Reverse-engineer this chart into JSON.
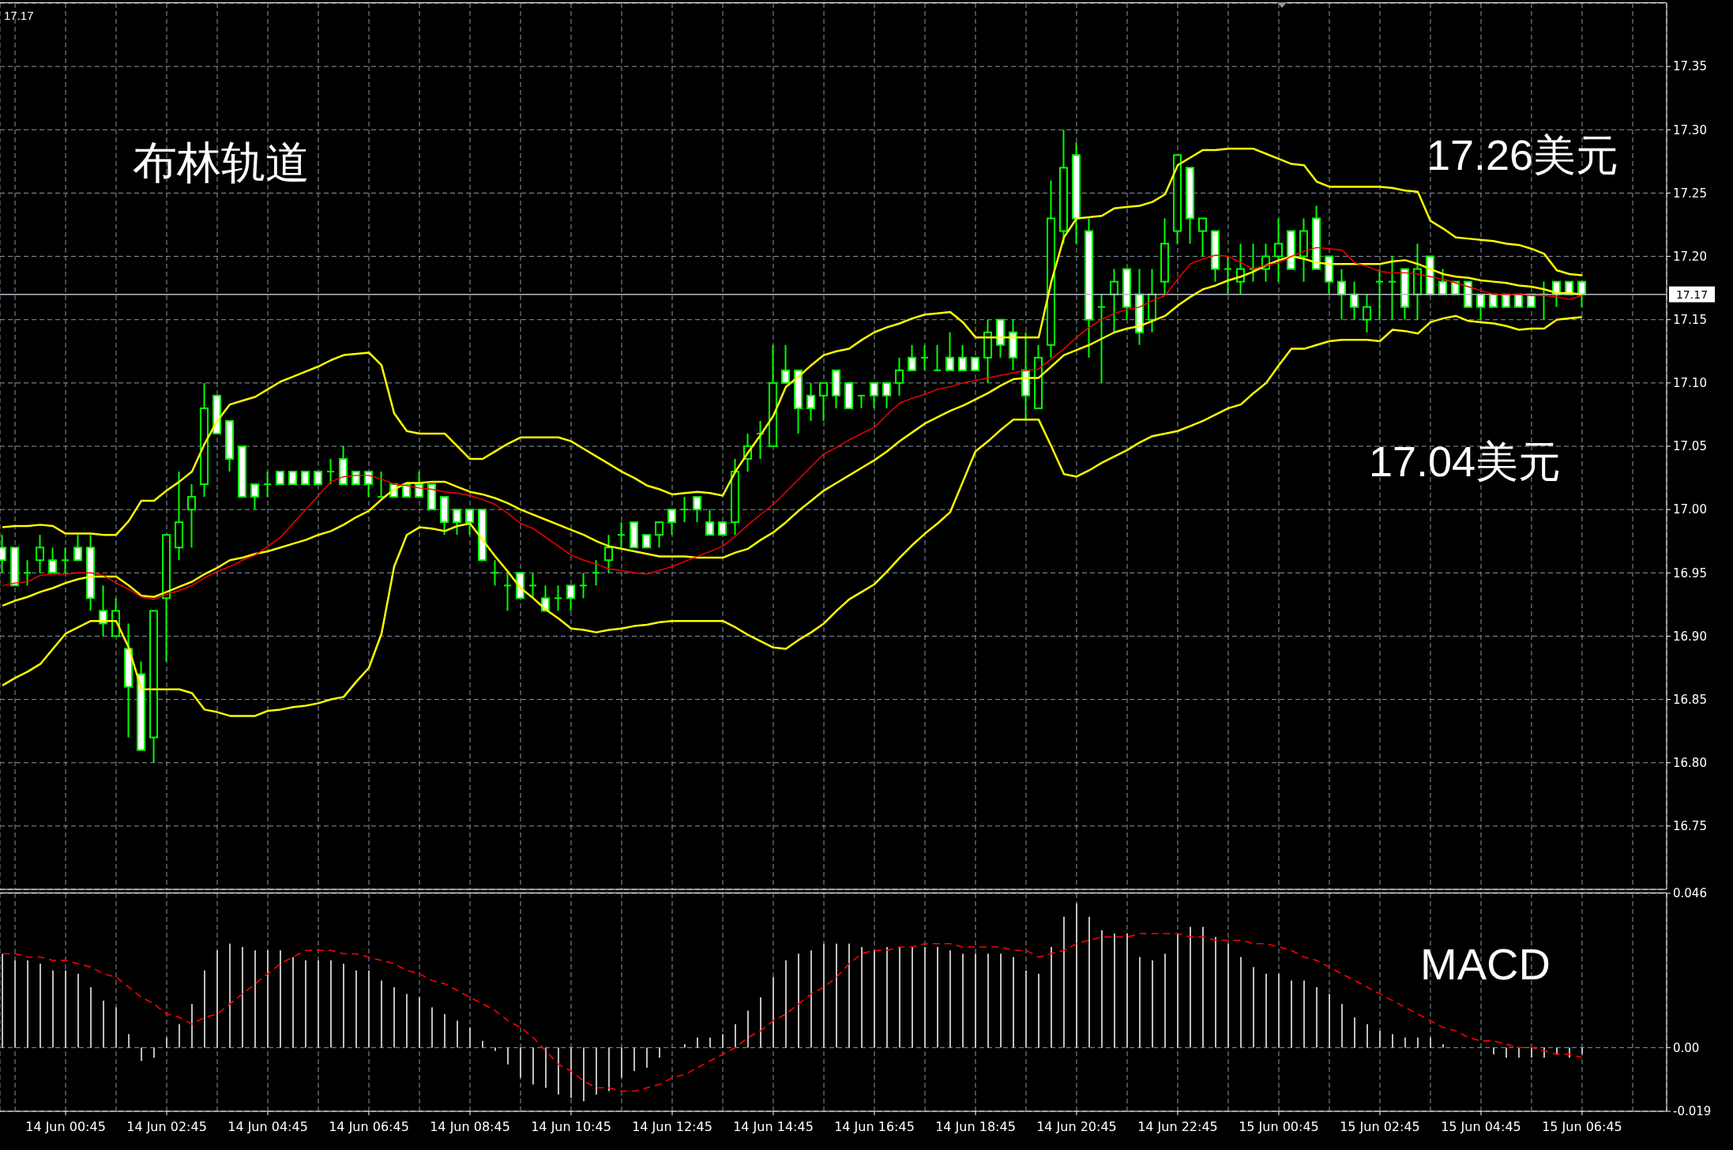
{
  "chart_data": [
    {
      "type": "candlestick",
      "categories": [
        null,
        null,
        null,
        null,
        null,
        null,
        null,
        null,
        null,
        null,
        null,
        null,
        null,
        null,
        null,
        null,
        null,
        null,
        null,
        null,
        null,
        null,
        null,
        null,
        null,
        null,
        null,
        null,
        null,
        null,
        null,
        null,
        null,
        null,
        null,
        null,
        null,
        null,
        null,
        null,
        null,
        null,
        null,
        null,
        null,
        null,
        null,
        null,
        null,
        null,
        null,
        null,
        null,
        null,
        null,
        null,
        null,
        null,
        null,
        null,
        null,
        null,
        null,
        null,
        null,
        null,
        null,
        null,
        null,
        null,
        null,
        null,
        null,
        null,
        null,
        null,
        null,
        null,
        null,
        null,
        null,
        null,
        null,
        null,
        null,
        null,
        null,
        null,
        null,
        null,
        null,
        null,
        null,
        null,
        null,
        null,
        null,
        null,
        null,
        null,
        null,
        null,
        null,
        null,
        null,
        null,
        null,
        null,
        null,
        null,
        null,
        null,
        null,
        null,
        null,
        null,
        null,
        null,
        null,
        null,
        null,
        null,
        null,
        null,
        null,
        null
      ],
      "ohlc": [
        [
          16.97,
          16.98,
          16.95,
          16.96
        ],
        [
          16.97,
          16.97,
          16.94,
          16.94
        ],
        [
          16.95,
          16.96,
          16.94,
          16.95
        ],
        [
          16.96,
          16.98,
          16.95,
          16.97
        ],
        [
          16.96,
          16.97,
          16.95,
          16.95
        ],
        [
          16.96,
          16.97,
          16.95,
          16.96
        ],
        [
          16.97,
          16.98,
          16.96,
          16.96
        ],
        [
          16.97,
          16.98,
          16.92,
          16.93
        ],
        [
          16.92,
          16.94,
          16.9,
          16.91
        ],
        [
          16.9,
          16.93,
          16.9,
          16.92
        ],
        [
          16.89,
          16.91,
          16.82,
          16.86
        ],
        [
          16.87,
          16.88,
          16.81,
          16.81
        ],
        [
          16.82,
          16.92,
          16.8,
          16.92
        ],
        [
          16.93,
          16.98,
          16.88,
          16.98
        ],
        [
          16.97,
          17.03,
          16.96,
          16.99
        ],
        [
          17.0,
          17.02,
          16.97,
          17.01
        ],
        [
          17.02,
          17.1,
          17.01,
          17.08
        ],
        [
          17.09,
          17.09,
          17.06,
          17.06
        ],
        [
          17.07,
          17.07,
          17.03,
          17.04
        ],
        [
          17.05,
          17.05,
          17.01,
          17.01
        ],
        [
          17.02,
          17.02,
          17.0,
          17.01
        ],
        [
          17.02,
          17.03,
          17.01,
          17.02
        ],
        [
          17.03,
          17.03,
          17.02,
          17.02
        ],
        [
          17.03,
          17.03,
          17.02,
          17.02
        ],
        [
          17.03,
          17.03,
          17.02,
          17.02
        ],
        [
          17.03,
          17.03,
          17.02,
          17.02
        ],
        [
          17.03,
          17.04,
          17.02,
          17.03
        ],
        [
          17.04,
          17.05,
          17.02,
          17.02
        ],
        [
          17.03,
          17.03,
          17.02,
          17.02
        ],
        [
          17.03,
          17.03,
          17.01,
          17.02
        ],
        [
          17.01,
          17.03,
          17.01,
          17.01
        ],
        [
          17.02,
          17.02,
          17.01,
          17.01
        ],
        [
          17.02,
          17.02,
          17.01,
          17.01
        ],
        [
          17.02,
          17.03,
          17.01,
          17.01
        ],
        [
          17.02,
          17.02,
          17.0,
          17.0
        ],
        [
          17.01,
          17.01,
          16.98,
          16.99
        ],
        [
          17.0,
          17.0,
          16.98,
          16.99
        ],
        [
          17.0,
          17.0,
          16.98,
          16.99
        ],
        [
          17.0,
          17.0,
          16.96,
          16.96
        ],
        [
          16.95,
          16.96,
          16.94,
          16.95
        ],
        [
          16.94,
          16.95,
          16.92,
          16.94
        ],
        [
          16.95,
          16.95,
          16.93,
          16.93
        ],
        [
          16.94,
          16.95,
          16.93,
          16.94
        ],
        [
          16.93,
          16.94,
          16.92,
          16.92
        ],
        [
          16.93,
          16.94,
          16.92,
          16.93
        ],
        [
          16.94,
          16.94,
          16.92,
          16.93
        ],
        [
          16.94,
          16.95,
          16.93,
          16.94
        ],
        [
          16.95,
          16.96,
          16.94,
          16.95
        ],
        [
          16.96,
          16.98,
          16.95,
          16.97
        ],
        [
          16.98,
          16.99,
          16.97,
          16.98
        ],
        [
          16.99,
          16.99,
          16.97,
          16.97
        ],
        [
          16.98,
          16.98,
          16.97,
          16.97
        ],
        [
          16.98,
          16.99,
          16.97,
          16.99
        ],
        [
          17.0,
          17.0,
          16.98,
          16.99
        ],
        [
          17.0,
          17.01,
          16.99,
          17.0
        ],
        [
          17.01,
          17.01,
          16.99,
          17.0
        ],
        [
          16.99,
          17.0,
          16.98,
          16.98
        ],
        [
          16.99,
          16.99,
          16.98,
          16.98
        ],
        [
          16.99,
          17.04,
          16.98,
          17.03
        ],
        [
          17.04,
          17.06,
          17.03,
          17.05
        ],
        [
          17.06,
          17.07,
          17.04,
          17.06
        ],
        [
          17.05,
          17.13,
          17.05,
          17.1
        ],
        [
          17.11,
          17.13,
          17.1,
          17.1
        ],
        [
          17.11,
          17.11,
          17.06,
          17.08
        ],
        [
          17.09,
          17.1,
          17.07,
          17.08
        ],
        [
          17.09,
          17.1,
          17.07,
          17.1
        ],
        [
          17.11,
          17.11,
          17.08,
          17.09
        ],
        [
          17.1,
          17.1,
          17.08,
          17.08
        ],
        [
          17.09,
          17.09,
          17.08,
          17.09
        ],
        [
          17.1,
          17.1,
          17.08,
          17.09
        ],
        [
          17.1,
          17.1,
          17.08,
          17.09
        ],
        [
          17.1,
          17.12,
          17.09,
          17.11
        ],
        [
          17.12,
          17.13,
          17.11,
          17.11
        ],
        [
          17.12,
          17.13,
          17.11,
          17.12
        ],
        [
          17.11,
          17.13,
          17.11,
          17.11
        ],
        [
          17.12,
          17.14,
          17.11,
          17.11
        ],
        [
          17.12,
          17.13,
          17.11,
          17.11
        ],
        [
          17.12,
          17.12,
          17.11,
          17.11
        ],
        [
          17.12,
          17.15,
          17.1,
          17.14
        ],
        [
          17.15,
          17.15,
          17.12,
          17.13
        ],
        [
          17.14,
          17.15,
          17.11,
          17.12
        ],
        [
          17.11,
          17.14,
          17.07,
          17.09
        ],
        [
          17.08,
          17.13,
          17.08,
          17.12
        ],
        [
          17.13,
          17.26,
          17.12,
          17.23
        ],
        [
          17.22,
          17.3,
          17.21,
          17.27
        ],
        [
          17.28,
          17.29,
          17.21,
          17.23
        ],
        [
          17.22,
          17.23,
          17.12,
          17.15
        ],
        [
          17.16,
          17.17,
          17.1,
          17.16
        ],
        [
          17.17,
          17.19,
          17.14,
          17.18
        ],
        [
          17.19,
          17.19,
          17.15,
          17.16
        ],
        [
          17.17,
          17.19,
          17.13,
          17.14
        ],
        [
          17.15,
          17.19,
          17.14,
          17.17
        ],
        [
          17.18,
          17.23,
          17.17,
          17.21
        ],
        [
          17.22,
          17.28,
          17.21,
          17.28
        ],
        [
          17.27,
          17.27,
          17.21,
          17.23
        ],
        [
          17.22,
          17.23,
          17.2,
          17.23
        ],
        [
          17.22,
          17.22,
          17.18,
          17.19
        ],
        [
          17.19,
          17.2,
          17.17,
          17.19
        ],
        [
          17.18,
          17.21,
          17.17,
          17.19
        ],
        [
          17.19,
          17.21,
          17.18,
          17.19
        ],
        [
          17.19,
          17.21,
          17.18,
          17.2
        ],
        [
          17.2,
          17.23,
          17.18,
          17.21
        ],
        [
          17.22,
          17.22,
          17.19,
          17.19
        ],
        [
          17.2,
          17.23,
          17.18,
          17.22
        ],
        [
          17.23,
          17.24,
          17.19,
          17.19
        ],
        [
          17.2,
          17.2,
          17.17,
          17.18
        ],
        [
          17.18,
          17.19,
          17.15,
          17.17
        ],
        [
          17.17,
          17.18,
          17.15,
          17.16
        ],
        [
          17.15,
          17.17,
          17.14,
          17.16
        ],
        [
          17.18,
          17.19,
          17.15,
          17.18
        ],
        [
          17.18,
          17.2,
          17.15,
          17.18
        ],
        [
          17.19,
          17.19,
          17.15,
          17.16
        ],
        [
          17.17,
          17.21,
          17.15,
          17.19
        ],
        [
          17.2,
          17.2,
          17.17,
          17.17
        ],
        [
          17.18,
          17.19,
          17.17,
          17.17
        ],
        [
          17.18,
          17.18,
          17.17,
          17.17
        ],
        [
          17.18,
          17.18,
          17.16,
          17.16
        ],
        [
          17.17,
          17.17,
          17.15,
          17.16
        ],
        [
          17.17,
          17.17,
          17.16,
          17.16
        ],
        [
          17.17,
          17.17,
          17.16,
          17.16
        ],
        [
          17.17,
          17.17,
          17.16,
          17.16
        ],
        [
          17.17,
          17.17,
          17.16,
          17.16
        ],
        [
          17.17,
          17.18,
          17.15,
          17.17
        ],
        [
          17.18,
          17.18,
          17.16,
          17.17
        ],
        [
          17.18,
          17.18,
          17.17,
          17.17
        ],
        [
          17.18,
          17.18,
          17.16,
          17.17
        ]
      ],
      "color": "#00ff00",
      "colors": [
        "#ffffff",
        "#ffffff",
        "#00ff00",
        "#000000",
        "#ffffff",
        "#00ff00",
        "#ffffff",
        "#ffffff",
        "#ffffff",
        "#000000",
        "#ffffff",
        "#ffffff",
        "#000000",
        "#000000",
        "#000000",
        "#000000",
        "#000000",
        "#ffffff",
        "#ffffff",
        "#ffffff",
        "#ffffff",
        "#00ff00",
        "#ffffff",
        "#ffffff",
        "#ffffff",
        "#ffffff",
        "#00ff00",
        "#ffffff",
        "#ffffff",
        "#ffffff",
        "#00ff00",
        "#ffffff",
        "#ffffff",
        "#ffffff",
        "#ffffff",
        "#ffffff",
        "#ffffff",
        "#ffffff",
        "#ffffff",
        "#00ff00",
        "#00ff00",
        "#ffffff",
        "#00ff00",
        "#ffffff",
        "#00ff00",
        "#ffffff",
        "#00ff00",
        "#00ff00",
        "#000000",
        "#00ff00",
        "#ffffff",
        "#ffffff",
        "#000000",
        "#ffffff",
        "#00ff00",
        "#ffffff",
        "#ffffff",
        "#ffffff",
        "#000000",
        "#000000",
        "#00ff00",
        "#000000",
        "#ffffff",
        "#ffffff",
        "#ffffff",
        "#000000",
        "#ffffff",
        "#ffffff",
        "#00ff00",
        "#ffffff",
        "#ffffff",
        "#000000",
        "#ffffff",
        "#00ff00",
        "#00ff00",
        "#ffffff",
        "#ffffff",
        "#ffffff",
        "#000000",
        "#ffffff",
        "#ffffff",
        "#ffffff",
        "#000000",
        "#000000",
        "#000000",
        "#ffffff",
        "#ffffff",
        "#00ff00",
        "#000000",
        "#ffffff",
        "#ffffff",
        "#000000",
        "#000000",
        "#000000",
        "#ffffff",
        "#000000",
        "#ffffff",
        "#00ff00",
        "#000000",
        "#00ff00",
        "#000000",
        "#000000",
        "#ffffff",
        "#000000",
        "#ffffff",
        "#ffffff",
        "#ffffff",
        "#ffffff",
        "#000000",
        "#00ff00",
        "#00ff00",
        "#ffffff",
        "#000000",
        "#ffffff",
        "#ffffff",
        "#ffffff",
        "#ffffff",
        "#ffffff",
        "#ffffff",
        "#ffffff",
        "#ffffff",
        "#ffffff",
        "#00ff00",
        "#ffffff",
        "#ffffff",
        "#ffffff"
      ],
      "series": [
        {
          "type": "line",
          "color": "#ffff00",
          "values": [
            16.986,
            16.987,
            16.987,
            16.988,
            16.987,
            16.981,
            16.981,
            16.981,
            16.98,
            16.98,
            16.991,
            17.007,
            17.007,
            17.015,
            17.022,
            17.03,
            17.052,
            17.07,
            17.083,
            17.086,
            17.089,
            17.095,
            17.101,
            17.105,
            17.109,
            17.113,
            17.118,
            17.122,
            17.123,
            17.124,
            17.114,
            17.076,
            17.062,
            17.06,
            17.06,
            17.06,
            17.05,
            17.04,
            17.04,
            17.046,
            17.052,
            17.057,
            17.057,
            17.057,
            17.057,
            17.054,
            17.048,
            17.042,
            17.036,
            17.03,
            17.025,
            17.019,
            17.016,
            17.012,
            17.013,
            17.014,
            17.013,
            17.011,
            17.03,
            17.045,
            17.059,
            17.074,
            17.097,
            17.105,
            17.114,
            17.122,
            17.125,
            17.127,
            17.134,
            17.14,
            17.144,
            17.147,
            17.151,
            17.154,
            17.155,
            17.156,
            17.148,
            17.136,
            17.136,
            17.136,
            17.136,
            17.136,
            17.136,
            17.18,
            17.215,
            17.23,
            17.231,
            17.232,
            17.238,
            17.239,
            17.24,
            17.243,
            17.249,
            17.272,
            17.278,
            17.284,
            17.284,
            17.285,
            17.285,
            17.285,
            17.281,
            17.277,
            17.273,
            17.272,
            17.259,
            17.255,
            17.255,
            17.255,
            17.255,
            17.255,
            17.254,
            17.252,
            17.251,
            17.228,
            17.222,
            17.215,
            17.214,
            17.213,
            17.212,
            17.21,
            17.209,
            17.206,
            17.202,
            17.189,
            17.186,
            17.185
          ]
        },
        {
          "type": "line",
          "color": "#ffff00",
          "values": [
            16.924,
            16.928,
            16.931,
            16.935,
            16.938,
            16.942,
            16.945,
            16.947,
            16.947,
            16.947,
            16.94,
            16.932,
            16.931,
            16.935,
            16.939,
            16.943,
            16.949,
            16.954,
            16.96,
            16.962,
            16.965,
            16.967,
            16.97,
            16.973,
            16.976,
            16.98,
            16.983,
            16.988,
            16.994,
            16.999,
            17.008,
            17.016,
            17.021,
            17.021,
            17.022,
            17.022,
            17.018,
            17.014,
            17.012,
            17.009,
            17.005,
            17.0,
            16.996,
            16.992,
            16.988,
            16.984,
            16.98,
            16.975,
            16.971,
            16.969,
            16.967,
            16.965,
            16.963,
            16.963,
            16.963,
            16.962,
            16.962,
            16.962,
            16.966,
            16.969,
            16.976,
            16.982,
            16.99,
            16.999,
            17.007,
            17.015,
            17.021,
            17.027,
            17.033,
            17.039,
            17.046,
            17.054,
            17.061,
            17.068,
            17.073,
            17.078,
            17.082,
            17.087,
            17.092,
            17.098,
            17.103,
            17.104,
            17.104,
            17.113,
            17.122,
            17.126,
            17.13,
            17.135,
            17.14,
            17.143,
            17.145,
            17.149,
            17.153,
            17.161,
            17.168,
            17.174,
            17.177,
            17.181,
            17.184,
            17.188,
            17.193,
            17.197,
            17.2,
            17.198,
            17.195,
            17.194,
            17.194,
            17.194,
            17.194,
            17.194,
            17.196,
            17.197,
            17.194,
            17.19,
            17.186,
            17.184,
            17.183,
            17.181,
            17.18,
            17.179,
            17.177,
            17.176,
            17.174,
            17.171,
            17.171,
            17.17
          ]
        },
        {
          "type": "line",
          "color": "#ffff00",
          "values": [
            16.861,
            16.867,
            16.872,
            16.878,
            16.89,
            16.902,
            16.907,
            16.912,
            16.912,
            16.912,
            16.891,
            16.858,
            16.858,
            16.858,
            16.858,
            16.855,
            16.842,
            16.84,
            16.837,
            16.837,
            16.837,
            16.841,
            16.842,
            16.844,
            16.845,
            16.847,
            16.85,
            16.852,
            16.864,
            16.875,
            16.902,
            16.955,
            16.98,
            16.986,
            16.985,
            16.983,
            16.987,
            16.989,
            16.976,
            16.963,
            16.951,
            16.938,
            16.93,
            16.921,
            16.914,
            16.906,
            16.905,
            16.903,
            16.905,
            16.906,
            16.908,
            16.909,
            16.911,
            16.912,
            16.912,
            16.912,
            16.912,
            16.912,
            16.907,
            16.901,
            16.896,
            16.891,
            16.89,
            16.897,
            16.903,
            16.91,
            16.92,
            16.929,
            16.935,
            16.941,
            16.951,
            16.962,
            16.972,
            16.981,
            16.989,
            16.998,
            17.022,
            17.046,
            17.054,
            17.063,
            17.071,
            17.071,
            17.071,
            17.05,
            17.028,
            17.026,
            17.031,
            17.037,
            17.042,
            17.047,
            17.053,
            17.058,
            17.06,
            17.062,
            17.066,
            17.07,
            17.075,
            17.08,
            17.083,
            17.092,
            17.1,
            17.114,
            17.127,
            17.127,
            17.13,
            17.133,
            17.134,
            17.134,
            17.134,
            17.133,
            17.142,
            17.141,
            17.139,
            17.148,
            17.151,
            17.153,
            17.149,
            17.148,
            17.147,
            17.145,
            17.142,
            17.143,
            17.143,
            17.15,
            17.151,
            17.152
          ]
        },
        {
          "type": "line",
          "color": "#ff0000",
          "values": [
            16.94,
            16.942,
            16.943,
            16.948,
            16.949,
            16.949,
            16.95,
            16.95,
            16.948,
            16.942,
            16.937,
            16.931,
            16.929,
            16.933,
            16.936,
            16.94,
            16.946,
            16.951,
            16.955,
            16.96,
            16.964,
            16.971,
            16.978,
            16.989,
            17.0,
            17.011,
            17.022,
            17.026,
            17.027,
            17.027,
            17.024,
            17.02,
            17.019,
            17.017,
            17.016,
            17.014,
            17.013,
            17.011,
            17.008,
            17.004,
            16.997,
            16.989,
            16.985,
            16.978,
            16.971,
            16.964,
            16.96,
            16.957,
            16.953,
            16.952,
            16.95,
            16.949,
            16.952,
            16.955,
            16.959,
            16.963,
            16.967,
            16.971,
            16.979,
            16.988,
            16.996,
            17.004,
            17.014,
            17.024,
            17.034,
            17.044,
            17.049,
            17.055,
            17.06,
            17.065,
            17.075,
            17.084,
            17.088,
            17.091,
            17.095,
            17.097,
            17.1,
            17.102,
            17.104,
            17.106,
            17.108,
            17.11,
            17.111,
            17.119,
            17.127,
            17.136,
            17.144,
            17.15,
            17.155,
            17.158,
            17.16,
            17.165,
            17.169,
            17.182,
            17.194,
            17.198,
            17.201,
            17.2,
            17.195,
            17.19,
            17.193,
            17.195,
            17.2,
            17.204,
            17.207,
            17.206,
            17.205,
            17.195,
            17.192,
            17.188,
            17.187,
            17.187,
            17.186,
            17.184,
            17.182,
            17.179,
            17.176,
            17.173,
            17.17,
            17.17,
            17.17,
            17.169,
            17.169,
            17.168,
            17.166,
            17.169
          ]
        }
      ],
      "ylim": [
        16.7,
        17.4
      ],
      "yticks": [
        16.75,
        {
          "value": 16.8,
          "label": "16.80"
        },
        16.85,
        {
          "value": 16.9,
          "label": "16.90"
        },
        16.95,
        {
          "value": 17,
          "label": "17.00"
        },
        17.05,
        {
          "value": 17.1,
          "label": "17.10"
        },
        17.15,
        {
          "value": 17.2,
          "label": "17.20"
        },
        17.25,
        {
          "value": 17.3,
          "label": "17.30"
        },
        17.35
      ],
      "grid": true,
      "ref_lines": [
        {
          "axis": "y",
          "value": 17.17,
          "label": "17.17",
          "color": "#b4bcc6"
        }
      ],
      "annotations": [
        "17.17",
        "布林轨道",
        "17.26美元",
        "17.04美元"
      ]
    },
    {
      "type": "bar",
      "categories": [
        null,
        null,
        null,
        null,
        null,
        "14 Jun 00:45",
        null,
        null,
        null,
        null,
        null,
        null,
        null,
        "14 Jun 02:45",
        null,
        null,
        null,
        null,
        null,
        null,
        null,
        "14 Jun 04:45",
        null,
        null,
        null,
        null,
        null,
        null,
        null,
        "14 Jun 06:45",
        null,
        null,
        null,
        null,
        null,
        null,
        null,
        "14 Jun 08:45",
        null,
        null,
        null,
        null,
        null,
        null,
        null,
        "14 Jun 10:45",
        null,
        null,
        null,
        null,
        null,
        null,
        null,
        "14 Jun 12:45",
        null,
        null,
        null,
        null,
        null,
        null,
        null,
        "14 Jun 14:45",
        null,
        null,
        null,
        null,
        null,
        null,
        null,
        "14 Jun 16:45",
        null,
        null,
        null,
        null,
        null,
        null,
        null,
        "14 Jun 18:45",
        null,
        null,
        null,
        null,
        null,
        null,
        null,
        "14 Jun 20:45",
        null,
        null,
        null,
        null,
        null,
        null,
        null,
        "14 Jun 22:45",
        null,
        null,
        null,
        null,
        null,
        null,
        null,
        "15 Jun 00:45",
        null,
        null,
        null,
        null,
        null,
        null,
        null,
        "15 Jun 02:45",
        null,
        null,
        null,
        null,
        null,
        null,
        null,
        "15 Jun 04:45",
        null,
        null,
        null,
        null,
        null,
        null,
        null,
        "15 Jun 06:45"
      ],
      "series": [
        {
          "color": "#c0c0c0",
          "values": [
            0.028,
            0.026,
            0.026,
            0.025,
            0.023,
            0.023,
            0.022,
            0.018,
            0.014,
            0.012,
            0.004,
            -0.004,
            -0.003,
            0.003,
            0.007,
            0.013,
            0.023,
            0.029,
            0.031,
            0.03,
            0.029,
            0.029,
            0.029,
            0.027,
            0.026,
            0.026,
            0.026,
            0.025,
            0.023,
            0.023,
            0.02,
            0.018,
            0.016,
            0.015,
            0.012,
            0.01,
            0.008,
            0.006,
            0.002,
            -0.001,
            -0.005,
            -0.009,
            -0.011,
            -0.012,
            -0.014,
            -0.015,
            -0.016,
            -0.014,
            -0.013,
            -0.009,
            -0.007,
            -0.006,
            -0.003,
            0,
            0.001,
            0.003,
            0.003,
            0.004,
            0.007,
            0.011,
            0.015,
            0.021,
            0.026,
            0.028,
            0.029,
            0.031,
            0.031,
            0.031,
            0.03,
            0.029,
            0.03,
            0.03,
            0.03,
            0.03,
            0.03,
            0.029,
            0.028,
            0.028,
            0.028,
            0.028,
            0.027,
            0.023,
            0.022,
            0.03,
            0.039,
            0.043,
            0.039,
            0.035,
            0.034,
            0.034,
            0.027,
            0.026,
            0.028,
            0.034,
            0.036,
            0.036,
            0.033,
            0.031,
            0.027,
            0.024,
            0.022,
            0.022,
            0.02,
            0.02,
            0.018,
            0.016,
            0.013,
            0.009,
            0.007,
            0.005,
            0.004,
            0.003,
            0.003,
            0.003,
            0.001,
            0,
            0,
            0,
            -0.002,
            -0.003,
            -0.003,
            -0.003,
            -0.003,
            -0.002,
            -0.003,
            -0.002
          ]
        },
        {
          "type": "line",
          "color": "#ff0000",
          "line_style": "dashed",
          "values": [
            0.028,
            0.028,
            0.027,
            0.027,
            0.026,
            0.026,
            0.025,
            0.024,
            0.022,
            0.021,
            0.018,
            0.015,
            0.013,
            0.01,
            0.009,
            0.007,
            0.009,
            0.01,
            0.013,
            0.016,
            0.019,
            0.022,
            0.025,
            0.027,
            0.029,
            0.029,
            0.029,
            0.028,
            0.028,
            0.027,
            0.026,
            0.025,
            0.023,
            0.022,
            0.02,
            0.019,
            0.017,
            0.015,
            0.013,
            0.011,
            0.008,
            0.006,
            0.003,
            -0.001,
            -0.005,
            -0.007,
            -0.01,
            -0.012,
            -0.012,
            -0.013,
            -0.013,
            -0.012,
            -0.011,
            -0.009,
            -0.008,
            -0.006,
            -0.004,
            -0.002,
            0,
            0.003,
            0.005,
            0.008,
            0.01,
            0.013,
            0.016,
            0.018,
            0.021,
            0.025,
            0.028,
            0.029,
            0.029,
            0.03,
            0.03,
            0.031,
            0.031,
            0.031,
            0.03,
            0.03,
            0.03,
            0.03,
            0.029,
            0.029,
            0.027,
            0.028,
            0.029,
            0.031,
            0.032,
            0.033,
            0.033,
            0.033,
            0.034,
            0.034,
            0.034,
            0.034,
            0.033,
            0.033,
            0.032,
            0.032,
            0.032,
            0.031,
            0.031,
            0.03,
            0.029,
            0.027,
            0.026,
            0.024,
            0.022,
            0.02,
            0.018,
            0.016,
            0.014,
            0.012,
            0.01,
            0.008,
            0.006,
            0.005,
            0.003,
            0.002,
            0.002,
            0.001,
            0,
            0,
            -0.001,
            -0.002,
            -0.002,
            -0.003
          ]
        }
      ],
      "ylim": [
        -0.019,
        0.046
      ],
      "yticks": [
        -0.019,
        {
          "value": 0,
          "label": "0.00"
        },
        0.046
      ],
      "grid": true,
      "annotations": [
        "MACD"
      ]
    }
  ]
}
